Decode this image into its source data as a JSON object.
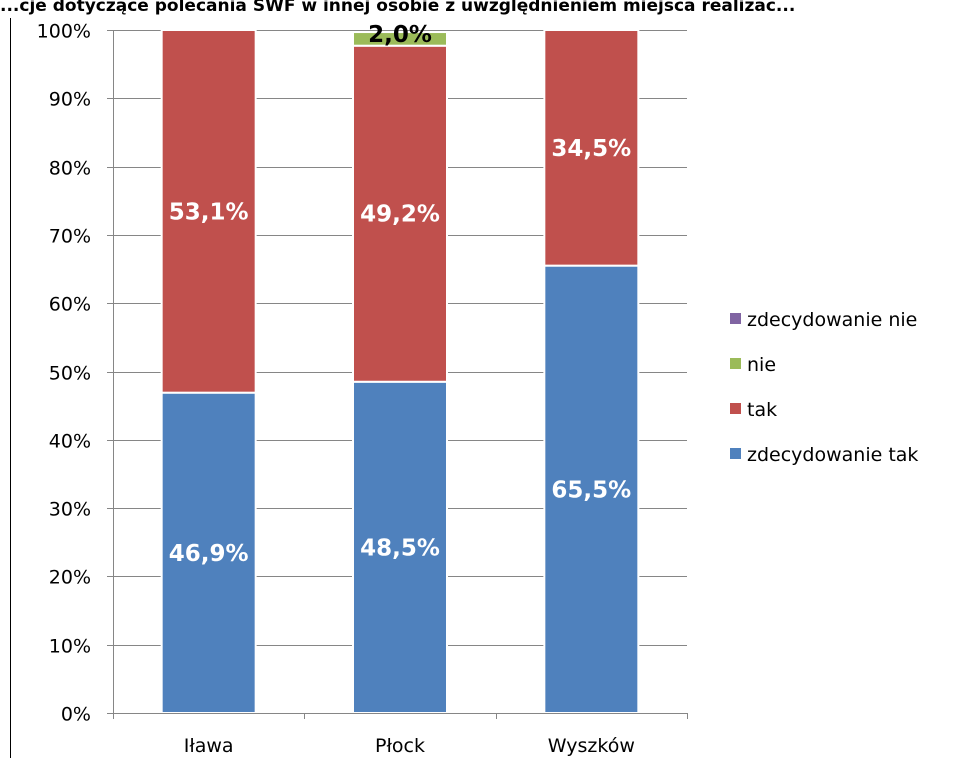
{
  "chart_data": {
    "type": "bar",
    "stacked": true,
    "title": "...cje dotyczące polecania SWF w innej osobie z uwzględnieniem miejsca realizac...",
    "categories": [
      "Iława",
      "Płock",
      "Wyszków"
    ],
    "series": [
      {
        "name": "zdecydowanie tak",
        "color": "#4f81bd",
        "values": [
          46.9,
          48.5,
          65.5
        ],
        "labels": [
          "46,9%",
          "48,5%",
          "65,5%"
        ]
      },
      {
        "name": "tak",
        "color": "#c0504d",
        "values": [
          53.1,
          49.2,
          34.5
        ],
        "labels": [
          "53,1%",
          "49,2%",
          "34,5%"
        ]
      },
      {
        "name": "nie",
        "color": "#9bbb59",
        "values": [
          0,
          2.0,
          0
        ],
        "labels": [
          "",
          "2,0%",
          ""
        ]
      },
      {
        "name": "zdecydowanie nie",
        "color": "#8064a2",
        "values": [
          0,
          0,
          0
        ],
        "labels": [
          "",
          "",
          ""
        ]
      }
    ],
    "yticks": [
      "0%",
      "10%",
      "20%",
      "30%",
      "40%",
      "50%",
      "60%",
      "70%",
      "80%",
      "90%",
      "100%"
    ],
    "ylim": [
      0,
      100
    ],
    "grid": true,
    "legend": "right"
  }
}
